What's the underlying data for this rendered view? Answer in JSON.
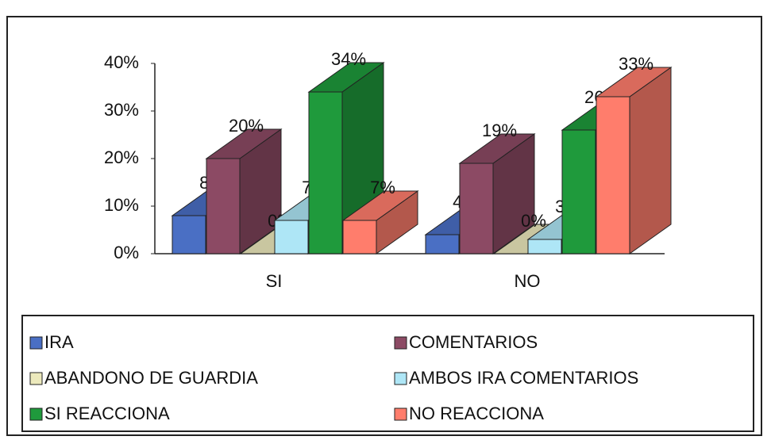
{
  "chart_data": {
    "type": "bar3d",
    "categories": [
      "SI",
      "NO"
    ],
    "series": [
      {
        "name": "IRA",
        "color": "#4a6fc4",
        "values": [
          8,
          4
        ],
        "value_labels": [
          "8%",
          "4%"
        ]
      },
      {
        "name": "COMENTARIOS",
        "color": "#8c4a64",
        "values": [
          20,
          19
        ],
        "value_labels": [
          "20%",
          "19%"
        ]
      },
      {
        "name": "ABANDONO DE GUARDIA",
        "color": "#ece9bc",
        "values": [
          0,
          0
        ],
        "value_labels": [
          "0%",
          "0%"
        ]
      },
      {
        "name": "AMBOS IRA COMENTARIOS",
        "color": "#aee6f6",
        "values": [
          7,
          3
        ],
        "value_labels": [
          "7%",
          "3%"
        ]
      },
      {
        "name": "SI REACCIONA",
        "color": "#1f9a3c",
        "values": [
          34,
          26
        ],
        "value_labels": [
          "34%",
          "26%"
        ]
      },
      {
        "name": "NO REACCIONA",
        "color": "#ff7d6c",
        "values": [
          7,
          33
        ],
        "value_labels": [
          "7%",
          "33%"
        ]
      }
    ],
    "ylim": [
      0,
      40
    ],
    "yticks": [
      {
        "value": 0,
        "label": "0%"
      },
      {
        "value": 10,
        "label": "10%"
      },
      {
        "value": 20,
        "label": "20%"
      },
      {
        "value": 30,
        "label": "30%"
      },
      {
        "value": 40,
        "label": "40%"
      }
    ],
    "legend": "bottom"
  }
}
